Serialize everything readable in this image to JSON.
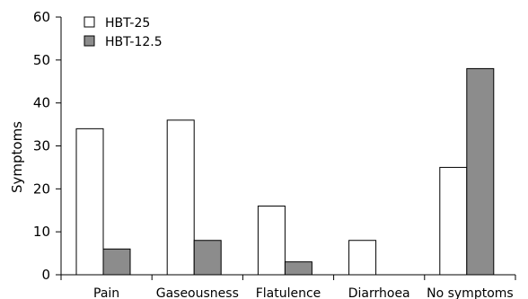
{
  "chart_data": {
    "type": "bar",
    "title": "",
    "xlabel": "",
    "ylabel": "Symptoms",
    "ylim": [
      0,
      60
    ],
    "yticks": [
      "0",
      "10",
      "20",
      "30",
      "40",
      "50",
      "60"
    ],
    "categories": [
      "Pain",
      "Gaseousness",
      "Flatulence",
      "Diarrhoea",
      "No symptoms"
    ],
    "series": [
      {
        "name": "HBT-25",
        "values": [
          34,
          36,
          16,
          8,
          25
        ],
        "color": "#ffffff"
      },
      {
        "name": "HBT-12.5",
        "values": [
          6,
          8,
          3,
          0,
          48
        ],
        "color": "#8c8c8c"
      }
    ],
    "legend": "top-left",
    "grid": false
  }
}
